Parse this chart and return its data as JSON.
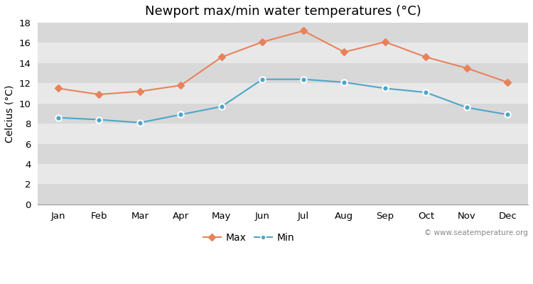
{
  "title": "Newport max/min water temperatures (°C)",
  "ylabel": "Celcius (°C)",
  "months": [
    "Jan",
    "Feb",
    "Mar",
    "Apr",
    "May",
    "Jun",
    "Jul",
    "Aug",
    "Sep",
    "Oct",
    "Nov",
    "Dec"
  ],
  "max_values": [
    11.5,
    10.9,
    11.2,
    11.8,
    14.6,
    16.1,
    17.2,
    15.1,
    16.1,
    14.6,
    13.5,
    12.1
  ],
  "min_values": [
    8.6,
    8.4,
    8.1,
    8.9,
    9.7,
    12.4,
    12.4,
    12.1,
    11.5,
    11.1,
    9.6,
    8.9
  ],
  "max_color": "#e8825a",
  "min_color": "#4da6c8",
  "bg_color": "#e0e0e0",
  "band_light": "#e8e8e8",
  "band_dark": "#d8d8d8",
  "ylim": [
    0,
    18
  ],
  "yticks": [
    0,
    2,
    4,
    6,
    8,
    10,
    12,
    14,
    16,
    18
  ],
  "watermark": "© www.seatemperature.org",
  "title_fontsize": 13,
  "label_fontsize": 10,
  "tick_fontsize": 9.5
}
